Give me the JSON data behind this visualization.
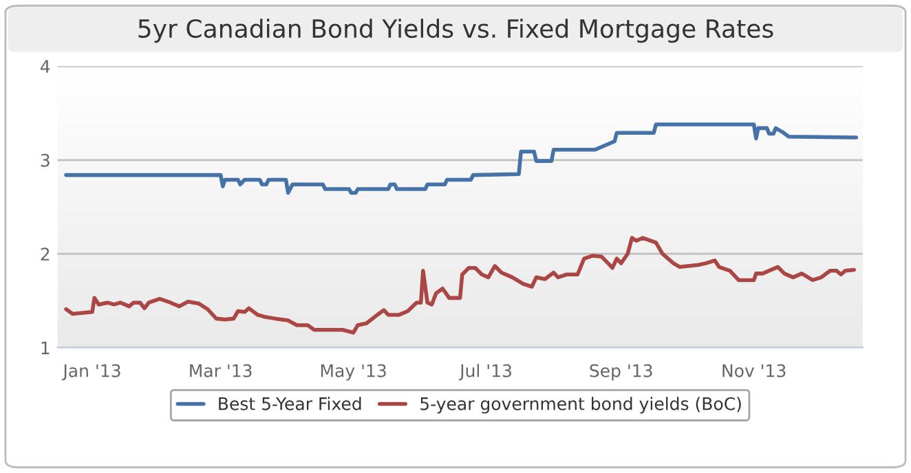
{
  "chart_data": {
    "type": "line",
    "title": "5yr Canadian Bond Yields vs. Fixed Mortgage Rates",
    "xlim": [
      "2012-12-16",
      "2013-12-21"
    ],
    "xticks": [
      {
        "value": "2013-01-01",
        "label": "Jan '13"
      },
      {
        "value": "2013-03-01",
        "label": "Mar '13"
      },
      {
        "value": "2013-05-01",
        "label": "May '13"
      },
      {
        "value": "2013-07-01",
        "label": "Jul '13"
      },
      {
        "value": "2013-09-01",
        "label": "Sep '13"
      },
      {
        "value": "2013-11-01",
        "label": "Nov '13"
      }
    ],
    "ylim": [
      1,
      4
    ],
    "yticks": [
      1,
      2,
      3,
      4
    ],
    "grid": "y",
    "legend": "bottom",
    "marker": "none",
    "line_style": "solid",
    "series": [
      {
        "name": "Best 5-Year Fixed",
        "color": "#4572a7",
        "x": [
          "2012-12-20",
          "2013-03-01",
          "2013-03-02",
          "2013-03-03",
          "2013-03-09",
          "2013-03-10",
          "2013-03-12",
          "2013-03-19",
          "2013-03-20",
          "2013-03-22",
          "2013-03-23",
          "2013-03-31",
          "2013-04-01",
          "2013-04-03",
          "2013-04-17",
          "2013-04-18",
          "2013-04-29",
          "2013-04-30",
          "2013-05-02",
          "2013-05-03",
          "2013-05-17",
          "2013-05-18",
          "2013-05-20",
          "2013-05-21",
          "2013-06-03",
          "2013-06-04",
          "2013-06-12",
          "2013-06-13",
          "2013-06-24",
          "2013-06-25",
          "2013-07-16",
          "2013-07-17",
          "2013-07-23",
          "2013-07-24",
          "2013-07-31",
          "2013-08-01",
          "2013-08-20",
          "2013-08-25",
          "2013-08-29",
          "2013-08-30",
          "2013-09-16",
          "2013-09-17",
          "2013-11-01",
          "2013-11-02",
          "2013-11-03",
          "2013-11-07",
          "2013-11-08",
          "2013-11-10",
          "2013-11-11",
          "2013-11-14",
          "2013-11-17",
          "2013-12-18"
        ],
        "values": [
          2.84,
          2.84,
          2.72,
          2.79,
          2.79,
          2.74,
          2.79,
          2.79,
          2.74,
          2.74,
          2.79,
          2.79,
          2.65,
          2.74,
          2.74,
          2.69,
          2.69,
          2.65,
          2.65,
          2.69,
          2.69,
          2.74,
          2.74,
          2.69,
          2.69,
          2.74,
          2.74,
          2.79,
          2.79,
          2.84,
          2.85,
          3.09,
          3.09,
          2.99,
          2.99,
          3.11,
          3.11,
          3.16,
          3.2,
          3.29,
          3.29,
          3.38,
          3.38,
          3.23,
          3.34,
          3.34,
          3.28,
          3.28,
          3.34,
          3.3,
          3.25,
          3.24
        ]
      },
      {
        "name": "5-year government bond yields (BoC)",
        "color": "#aa4643",
        "x": [
          "2012-12-20",
          "2012-12-23",
          "2013-01-01",
          "2013-01-02",
          "2013-01-04",
          "2013-01-08",
          "2013-01-11",
          "2013-01-14",
          "2013-01-18",
          "2013-01-20",
          "2013-01-23",
          "2013-01-25",
          "2013-01-27",
          "2013-02-01",
          "2013-02-06",
          "2013-02-10",
          "2013-02-14",
          "2013-02-19",
          "2013-02-23",
          "2013-02-27",
          "2013-03-03",
          "2013-03-07",
          "2013-03-09",
          "2013-03-12",
          "2013-03-14",
          "2013-03-18",
          "2013-03-21",
          "2013-03-26",
          "2013-04-01",
          "2013-04-05",
          "2013-04-10",
          "2013-04-13",
          "2013-04-22",
          "2013-04-26",
          "2013-05-01",
          "2013-05-03",
          "2013-05-07",
          "2013-05-12",
          "2013-05-15",
          "2013-05-17",
          "2013-05-22",
          "2013-05-26",
          "2013-05-30",
          "2013-06-01",
          "2013-06-02",
          "2013-06-04",
          "2013-06-06",
          "2013-06-08",
          "2013-06-11",
          "2013-06-14",
          "2013-06-19",
          "2013-06-20",
          "2013-06-23",
          "2013-06-26",
          "2013-06-29",
          "2013-07-02",
          "2013-07-05",
          "2013-07-08",
          "2013-07-13",
          "2013-07-18",
          "2013-07-22",
          "2013-07-24",
          "2013-07-28",
          "2013-08-01",
          "2013-08-03",
          "2013-08-07",
          "2013-08-12",
          "2013-08-15",
          "2013-08-19",
          "2013-08-23",
          "2013-08-26",
          "2013-08-28",
          "2013-08-30",
          "2013-09-01",
          "2013-09-04",
          "2013-09-06",
          "2013-09-08",
          "2013-09-11",
          "2013-09-17",
          "2013-09-20",
          "2013-09-25",
          "2013-09-28",
          "2013-10-06",
          "2013-10-10",
          "2013-10-14",
          "2013-10-16",
          "2013-10-21",
          "2013-10-25",
          "2013-11-01",
          "2013-11-02",
          "2013-11-05",
          "2013-11-09",
          "2013-11-12",
          "2013-11-15",
          "2013-11-19",
          "2013-11-23",
          "2013-11-28",
          "2013-12-02",
          "2013-12-06",
          "2013-12-09",
          "2013-12-11",
          "2013-12-13",
          "2013-12-17"
        ],
        "values": [
          1.41,
          1.36,
          1.38,
          1.53,
          1.46,
          1.48,
          1.46,
          1.48,
          1.44,
          1.48,
          1.48,
          1.42,
          1.48,
          1.52,
          1.48,
          1.44,
          1.49,
          1.47,
          1.41,
          1.31,
          1.3,
          1.31,
          1.39,
          1.38,
          1.42,
          1.35,
          1.33,
          1.31,
          1.29,
          1.24,
          1.24,
          1.19,
          1.19,
          1.19,
          1.16,
          1.24,
          1.26,
          1.35,
          1.4,
          1.35,
          1.35,
          1.39,
          1.48,
          1.48,
          1.82,
          1.48,
          1.46,
          1.58,
          1.63,
          1.53,
          1.53,
          1.78,
          1.85,
          1.85,
          1.78,
          1.75,
          1.87,
          1.8,
          1.75,
          1.68,
          1.65,
          1.75,
          1.73,
          1.8,
          1.75,
          1.78,
          1.78,
          1.95,
          1.98,
          1.97,
          1.9,
          1.85,
          1.95,
          1.9,
          2.0,
          2.17,
          2.14,
          2.17,
          2.12,
          2.0,
          1.9,
          1.86,
          1.88,
          1.9,
          1.93,
          1.86,
          1.82,
          1.72,
          1.72,
          1.79,
          1.79,
          1.83,
          1.86,
          1.79,
          1.75,
          1.79,
          1.72,
          1.75,
          1.82,
          1.82,
          1.78,
          1.82,
          1.83
        ]
      }
    ]
  }
}
